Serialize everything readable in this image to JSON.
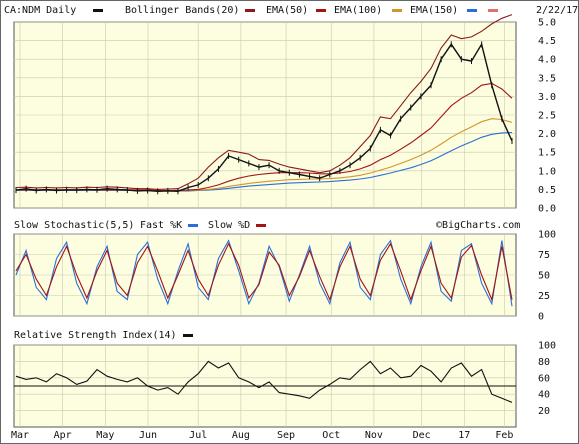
{
  "header": {
    "symbol_label": "CA:NDM Daily",
    "date": "2/22/17",
    "legend": [
      {
        "label": "Bollinger Bands(20)",
        "color": "#8b1a1a"
      },
      {
        "label": "EMA(50)",
        "color": "#a31515"
      },
      {
        "label": "EMA(100)",
        "color": "#d4952a"
      },
      {
        "label": "EMA(150)",
        "color": "#2a6fd6"
      }
    ],
    "legend_trailing_swatch_color": "#e07070",
    "symbol_swatch_color": "#111111"
  },
  "stoch_header": {
    "label": "Slow Stochastic(5,5)",
    "fast_label": "Fast %K",
    "slow_label": "Slow %D",
    "fast_color": "#2a6fd6",
    "slow_color": "#a31515",
    "watermark": "©BigCharts.com"
  },
  "rsi_header": {
    "label": "Relative Strength Index(14)",
    "line_color": "#111111"
  },
  "chart_data": [
    {
      "type": "line",
      "panel": "price",
      "title": "CA:NDM Daily",
      "ylim": [
        0.0,
        5.0
      ],
      "yticks": [
        "0.0",
        "0.5",
        "1.0",
        "1.5",
        "2.0",
        "2.5",
        "3.0",
        "3.5",
        "4.0",
        "4.5",
        "5.0"
      ],
      "x_labels": [
        "Mar",
        "Apr",
        "May",
        "Jun",
        "Jul",
        "Aug",
        "Sep",
        "Oct",
        "Nov",
        "Dec",
        "17",
        "Feb"
      ],
      "series": [
        {
          "name": "CA:NDM Daily",
          "values": [
            0.48,
            0.52,
            0.47,
            0.5,
            0.47,
            0.49,
            0.48,
            0.5,
            0.49,
            0.52,
            0.5,
            0.48,
            0.46,
            0.47,
            0.45,
            0.46,
            0.45,
            0.55,
            0.62,
            0.8,
            1.05,
            1.4,
            1.3,
            1.2,
            1.1,
            1.15,
            1.0,
            0.95,
            0.9,
            0.85,
            0.8,
            0.9,
            1.0,
            1.15,
            1.35,
            1.6,
            2.1,
            1.95,
            2.4,
            2.7,
            3.0,
            3.3,
            4.0,
            4.4,
            4.0,
            3.95,
            4.4,
            3.3,
            2.4,
            1.8
          ]
        },
        {
          "name": "Bollinger Bands(20)",
          "values": [
            0.55,
            0.56,
            0.54,
            0.55,
            0.54,
            0.55,
            0.54,
            0.56,
            0.55,
            0.57,
            0.56,
            0.54,
            0.52,
            0.52,
            0.5,
            0.51,
            0.52,
            0.65,
            0.8,
            1.1,
            1.35,
            1.55,
            1.5,
            1.45,
            1.3,
            1.28,
            1.18,
            1.1,
            1.05,
            1.0,
            0.95,
            1.0,
            1.15,
            1.35,
            1.65,
            1.95,
            2.45,
            2.4,
            2.75,
            3.1,
            3.4,
            3.75,
            4.3,
            4.65,
            4.55,
            4.6,
            4.75,
            4.95,
            5.1,
            5.2
          ]
        },
        {
          "name": "EMA(50)",
          "values": [
            0.49,
            0.49,
            0.49,
            0.49,
            0.49,
            0.49,
            0.49,
            0.49,
            0.49,
            0.49,
            0.49,
            0.49,
            0.48,
            0.48,
            0.47,
            0.47,
            0.47,
            0.48,
            0.5,
            0.55,
            0.62,
            0.72,
            0.8,
            0.86,
            0.9,
            0.93,
            0.95,
            0.95,
            0.95,
            0.94,
            0.92,
            0.92,
            0.94,
            0.98,
            1.05,
            1.15,
            1.3,
            1.42,
            1.58,
            1.75,
            1.95,
            2.15,
            2.45,
            2.75,
            2.95,
            3.1,
            3.3,
            3.35,
            3.2,
            2.95
          ]
        },
        {
          "name": "EMA(100)",
          "values": [
            0.48,
            0.48,
            0.48,
            0.48,
            0.48,
            0.48,
            0.48,
            0.48,
            0.48,
            0.48,
            0.48,
            0.48,
            0.48,
            0.48,
            0.47,
            0.47,
            0.47,
            0.47,
            0.48,
            0.5,
            0.53,
            0.58,
            0.62,
            0.66,
            0.69,
            0.72,
            0.74,
            0.76,
            0.77,
            0.78,
            0.78,
            0.79,
            0.81,
            0.84,
            0.88,
            0.94,
            1.02,
            1.1,
            1.2,
            1.3,
            1.42,
            1.55,
            1.72,
            1.9,
            2.05,
            2.18,
            2.32,
            2.4,
            2.38,
            2.3
          ]
        },
        {
          "name": "EMA(150)",
          "values": [
            0.47,
            0.47,
            0.47,
            0.47,
            0.47,
            0.47,
            0.47,
            0.47,
            0.47,
            0.47,
            0.47,
            0.47,
            0.47,
            0.47,
            0.46,
            0.46,
            0.46,
            0.46,
            0.47,
            0.48,
            0.5,
            0.53,
            0.56,
            0.59,
            0.61,
            0.63,
            0.65,
            0.67,
            0.68,
            0.69,
            0.7,
            0.71,
            0.73,
            0.75,
            0.78,
            0.82,
            0.88,
            0.94,
            1.01,
            1.08,
            1.17,
            1.27,
            1.4,
            1.54,
            1.67,
            1.78,
            1.9,
            1.98,
            2.02,
            2.03
          ]
        }
      ]
    },
    {
      "type": "line",
      "panel": "stochastic",
      "title": "Slow Stochastic(5,5)",
      "ylim": [
        0,
        100
      ],
      "yticks": [
        "0",
        "25",
        "50",
        "75",
        "100"
      ],
      "series": [
        {
          "name": "Fast %K",
          "values": [
            50,
            80,
            35,
            20,
            70,
            90,
            40,
            15,
            60,
            85,
            30,
            20,
            75,
            90,
            45,
            15,
            55,
            88,
            35,
            20,
            70,
            92,
            55,
            15,
            40,
            85,
            60,
            18,
            50,
            85,
            40,
            15,
            65,
            90,
            35,
            20,
            75,
            92,
            45,
            15,
            60,
            90,
            30,
            18,
            80,
            88,
            40,
            15,
            92,
            12
          ]
        },
        {
          "name": "Slow %D",
          "values": [
            55,
            75,
            45,
            25,
            60,
            85,
            50,
            22,
            55,
            80,
            40,
            25,
            65,
            85,
            55,
            22,
            50,
            80,
            45,
            25,
            62,
            88,
            62,
            22,
            38,
            78,
            62,
            25,
            48,
            80,
            48,
            20,
            60,
            85,
            45,
            25,
            68,
            88,
            55,
            20,
            55,
            85,
            40,
            22,
            72,
            86,
            50,
            20,
            85,
            20
          ]
        }
      ]
    },
    {
      "type": "line",
      "panel": "rsi",
      "title": "Relative Strength Index(14)",
      "ylim": [
        0,
        100
      ],
      "yticks": [
        "20",
        "40",
        "60",
        "80",
        "100"
      ],
      "reference_line": 50,
      "series": [
        {
          "name": "Relative Strength Index(14)",
          "values": [
            62,
            58,
            60,
            55,
            65,
            60,
            52,
            56,
            70,
            62,
            58,
            55,
            60,
            50,
            45,
            48,
            40,
            55,
            65,
            80,
            72,
            78,
            60,
            55,
            48,
            55,
            42,
            40,
            38,
            35,
            45,
            52,
            60,
            58,
            70,
            80,
            65,
            72,
            60,
            62,
            75,
            68,
            55,
            72,
            78,
            62,
            70,
            40,
            35,
            30
          ]
        }
      ]
    }
  ],
  "x_axis": {
    "labels": [
      "Mar",
      "Apr",
      "May",
      "Jun",
      "Jul",
      "Aug",
      "Sep",
      "Oct",
      "Nov",
      "Dec",
      "17",
      "Feb"
    ]
  }
}
